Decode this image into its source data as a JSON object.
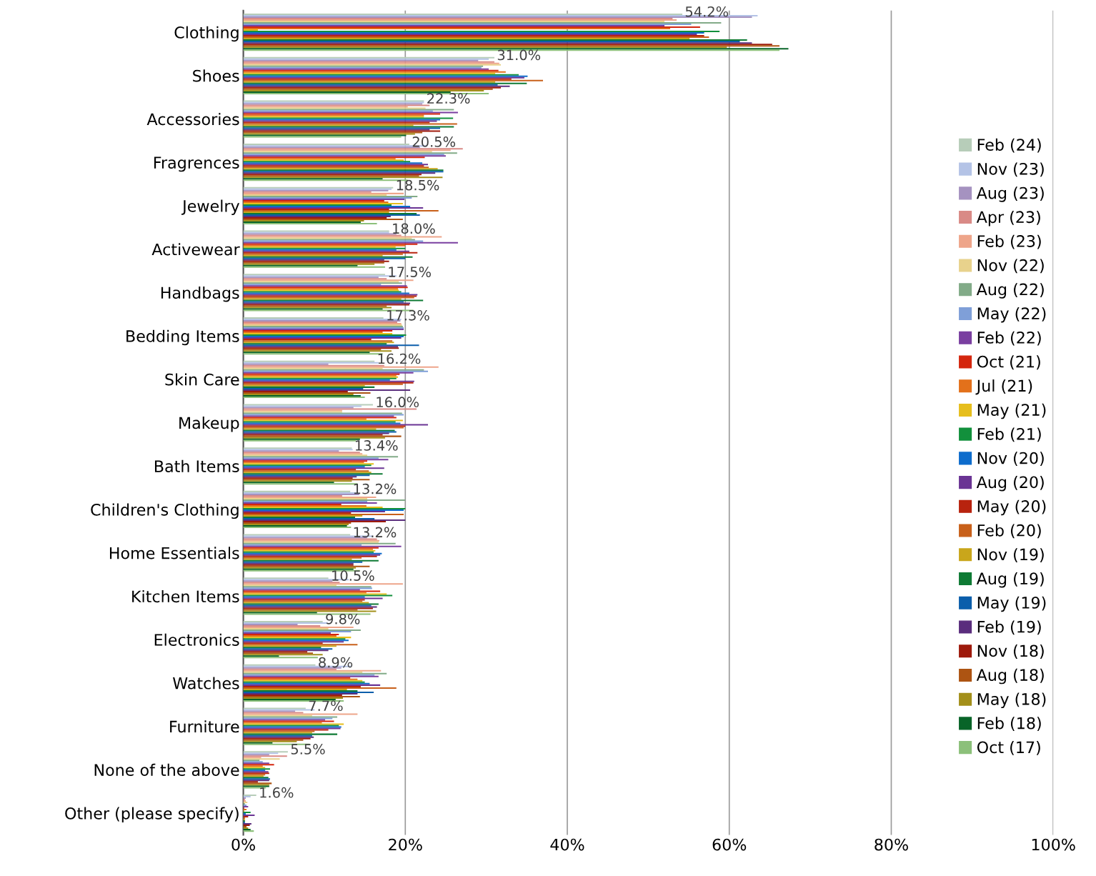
{
  "chart_data": {
    "type": "bar",
    "orientation": "horizontal",
    "categories": [
      "Clothing",
      "Shoes",
      "Accessories",
      "Fragrences",
      "Jewelry",
      "Activewear",
      "Handbags",
      "Bedding Items",
      "Skin Care",
      "Makeup",
      "Bath Items",
      "Children's Clothing",
      "Home Essentials",
      "Kitchen Items",
      "Electronics",
      "Watches",
      "Furniture",
      "None of the above",
      "Other (please specify)"
    ],
    "xlim": [
      0,
      100
    ],
    "xticks": [
      {
        "value": 0,
        "label": "0%"
      },
      {
        "value": 20,
        "label": "20%"
      },
      {
        "value": 40,
        "label": "40%"
      },
      {
        "value": 60,
        "label": "60%"
      },
      {
        "value": 80,
        "label": "80%"
      },
      {
        "value": 100,
        "label": "100%"
      }
    ],
    "grid": "x",
    "legend": "right",
    "series": [
      {
        "name": "Feb (24)",
        "color": "#b7cdb9",
        "values": [
          54.2,
          31.0,
          22.3,
          20.5,
          18.5,
          18.0,
          17.5,
          17.3,
          16.2,
          16.0,
          13.4,
          13.2,
          13.2,
          10.5,
          9.8,
          8.9,
          7.7,
          5.5,
          1.6
        ],
        "value_labels": [
          "54.2%",
          "31.0%",
          "22.3%",
          "20.5%",
          "18.5%",
          "18.0%",
          "17.5%",
          "17.3%",
          "16.2%",
          "16.0%",
          "13.4%",
          "13.2%",
          "13.2%",
          "10.5%",
          "9.8%",
          "8.9%",
          "7.7%",
          "5.5%",
          "1.6%"
        ]
      },
      {
        "name": "Nov (23)",
        "color": "#b4c3e6",
        "values": [
          63.5,
          30.3,
          22.3,
          22.7,
          18.3,
          18.0,
          18.9,
          19.5,
          16.7,
          14.6,
          13.5,
          14.0,
          16.0,
          13.0,
          10.4,
          13.3,
          8.8,
          4.3,
          0.9
        ]
      },
      {
        "name": "Aug (23)",
        "color": "#a592c0",
        "values": [
          62.8,
          29.0,
          22.1,
          21.8,
          17.9,
          18.9,
          16.7,
          19.4,
          10.5,
          13.6,
          11.8,
          14.3,
          15.3,
          11.0,
          6.7,
          12.1,
          6.4,
          3.2,
          0.3
        ]
      },
      {
        "name": "Apr (23)",
        "color": "#d98a86",
        "values": [
          53.0,
          31.0,
          23.0,
          27.1,
          15.8,
          19.5,
          17.7,
          19.0,
          17.4,
          21.4,
          14.4,
          12.2,
          16.5,
          11.9,
          9.5,
          11.5,
          7.4,
          5.4,
          0.2
        ]
      },
      {
        "name": "Feb (23)",
        "color": "#eea58a",
        "values": [
          53.5,
          31.6,
          20.3,
          25.6,
          19.8,
          24.5,
          21.0,
          19.5,
          24.1,
          12.2,
          14.7,
          16.4,
          16.8,
          19.7,
          13.6,
          17.0,
          14.1,
          2.2,
          0.3
        ]
      },
      {
        "name": "Nov (22)",
        "color": "#e8d28c",
        "values": [
          52.0,
          31.8,
          22.5,
          23.3,
          17.7,
          20.8,
          19.2,
          19.6,
          17.2,
          12.2,
          15.3,
          15.3,
          16.7,
          11.5,
          10.5,
          14.7,
          8.5,
          4.5,
          0.5
        ]
      },
      {
        "name": "Aug (22)",
        "color": "#82ab88",
        "values": [
          59.0,
          29.6,
          26.0,
          26.4,
          21.5,
          21.2,
          19.6,
          19.7,
          22.3,
          19.6,
          19.1,
          20.0,
          18.8,
          15.8,
          14.5,
          17.7,
          11.6,
          2.0,
          0.2
        ]
      },
      {
        "name": "May (22)",
        "color": "#7f9fd8",
        "values": [
          55.3,
          29.4,
          23.4,
          24.8,
          20.8,
          22.2,
          17.0,
          19.8,
          22.8,
          19.8,
          16.7,
          15.3,
          14.6,
          15.9,
          13.3,
          16.2,
          11.0,
          2.4,
          0.4
        ]
      },
      {
        "name": "Feb (22)",
        "color": "#7a3fa0",
        "values": [
          52.0,
          30.3,
          26.5,
          25.0,
          19.9,
          26.5,
          20.2,
          19.8,
          21.0,
          18.6,
          17.9,
          16.5,
          19.5,
          14.4,
          10.8,
          16.7,
          10.1,
          3.2,
          0.6
        ]
      },
      {
        "name": "Oct (21)",
        "color": "#d4260e",
        "values": [
          56.4,
          31.5,
          24.3,
          22.4,
          17.4,
          21.5,
          20.3,
          18.4,
          19.3,
          18.9,
          15.3,
          12.1,
          16.7,
          16.9,
          11.8,
          13.2,
          11.2,
          3.8,
          0.1
        ]
      },
      {
        "name": "Jul (21)",
        "color": "#e3711b",
        "values": [
          52.7,
          32.4,
          22.3,
          18.8,
          17.9,
          20.0,
          19.1,
          17.2,
          18.9,
          15.2,
          14.9,
          15.2,
          16.0,
          15.2,
          11.5,
          14.1,
          9.7,
          2.4,
          0.4
        ]
      },
      {
        "name": "May (21)",
        "color": "#e6be1d",
        "values": [
          1.8,
          31.1,
          22.3,
          19.8,
          19.7,
          18.8,
          19.2,
          18.4,
          19.1,
          19.7,
          16.1,
          17.2,
          16.3,
          17.7,
          13.3,
          14.7,
          12.4,
          2.7,
          0.1
        ]
      },
      {
        "name": "Feb (21)",
        "color": "#12903c",
        "values": [
          58.8,
          34.0,
          25.9,
          20.6,
          18.3,
          20.0,
          19.5,
          20.1,
          18.9,
          18.8,
          15.8,
          20.0,
          16.1,
          18.4,
          12.6,
          15.0,
          11.8,
          3.3,
          0.9
        ]
      },
      {
        "name": "Nov (20)",
        "color": "#0d6ccc",
        "values": [
          56.9,
          35.1,
          24.3,
          22.1,
          20.6,
          18.9,
          20.5,
          19.8,
          18.1,
          19.4,
          15.0,
          19.8,
          17.1,
          15.0,
          13.0,
          15.6,
          12.1,
          2.7,
          0.3
        ]
      },
      {
        "name": "Aug (20)",
        "color": "#6a3494",
        "values": [
          56.0,
          34.7,
          23.9,
          22.8,
          22.2,
          20.5,
          21.5,
          19.5,
          21.1,
          22.8,
          17.4,
          17.5,
          16.9,
          17.2,
          12.4,
          16.9,
          12.0,
          3.1,
          1.4
        ]
      },
      {
        "name": "May (20)",
        "color": "#b8230e",
        "values": [
          56.9,
          33.1,
          23.0,
          22.3,
          18.0,
          21.5,
          21.4,
          15.8,
          21.0,
          20.0,
          13.9,
          13.3,
          16.5,
          15.0,
          9.8,
          14.5,
          10.5,
          3.2,
          0.6
        ]
      },
      {
        "name": "Feb (20)",
        "color": "#c8601a",
        "values": [
          57.5,
          37.0,
          26.4,
          22.9,
          24.1,
          19.7,
          21.1,
          18.4,
          19.7,
          19.8,
          15.5,
          19.8,
          14.6,
          14.7,
          14.1,
          18.9,
          8.8,
          2.7,
          0.2
        ]
      },
      {
        "name": "Nov (19)",
        "color": "#c9a61b",
        "values": [
          55.1,
          31.1,
          21.0,
          24.0,
          18.0,
          17.2,
          19.5,
          18.6,
          15.0,
          16.4,
          15.8,
          14.7,
          13.4,
          15.5,
          11.5,
          12.8,
          8.5,
          2.5,
          0.2
        ]
      },
      {
        "name": "Aug (19)",
        "color": "#0e7a34",
        "values": [
          62.2,
          35.0,
          26.0,
          24.7,
          21.4,
          20.9,
          22.2,
          17.7,
          16.2,
          18.7,
          17.2,
          13.8,
          16.7,
          16.7,
          9.6,
          14.1,
          11.6,
          3.1,
          0.2
        ]
      },
      {
        "name": "May (19)",
        "color": "#0b5eab",
        "values": [
          61.3,
          31.4,
          24.3,
          24.7,
          21.8,
          20.0,
          19.8,
          21.7,
          14.8,
          18.9,
          15.6,
          16.2,
          14.7,
          15.8,
          11.0,
          16.1,
          8.5,
          3.3,
          0.2
        ]
      },
      {
        "name": "Feb (19)",
        "color": "#5a2d7d",
        "values": [
          62.8,
          32.9,
          23.0,
          23.7,
          18.2,
          17.4,
          20.6,
          19.1,
          20.6,
          18.0,
          14.0,
          20.0,
          13.6,
          16.5,
          10.5,
          14.1,
          8.7,
          3.2,
          1.0
        ]
      },
      {
        "name": "Nov (18)",
        "color": "#9e1a0c",
        "values": [
          65.3,
          31.8,
          24.3,
          22.0,
          17.7,
          18.0,
          20.5,
          19.2,
          12.9,
          17.2,
          13.5,
          17.6,
          13.6,
          16.0,
          7.9,
          12.2,
          8.3,
          1.8,
          0.8
        ]
      },
      {
        "name": "Aug (18)",
        "color": "#ad5412",
        "values": [
          66.2,
          30.8,
          22.1,
          21.7,
          19.7,
          17.4,
          17.7,
          17.0,
          15.7,
          19.5,
          15.6,
          13.3,
          15.6,
          14.1,
          8.6,
          14.4,
          7.4,
          3.5,
          0.4
        ]
      },
      {
        "name": "May (18)",
        "color": "#a38f1a",
        "values": [
          59.7,
          29.7,
          21.2,
          24.6,
          14.9,
          16.2,
          18.3,
          18.3,
          13.6,
          17.5,
          13.4,
          13.0,
          13.9,
          16.4,
          9.8,
          12.3,
          6.6,
          3.2,
          0.6
        ]
      },
      {
        "name": "Feb (18)",
        "color": "#086428",
        "values": [
          67.3,
          25.6,
          20.1,
          17.2,
          14.5,
          14.1,
          17.2,
          15.6,
          14.5,
          14.4,
          11.2,
          12.8,
          13.6,
          9.1,
          4.4,
          11.4,
          3.6,
          3.2,
          0.9
        ]
      },
      {
        "name": "Oct (17)",
        "color": "#8cc07a",
        "values": [
          66.2,
          30.3,
          19.5,
          20.3,
          16.5,
          17.5,
          21.0,
          17.2,
          15.0,
          13.9,
          14.1,
          13.3,
          14.4,
          15.7,
          9.2,
          12.4,
          8.2,
          2.8,
          1.3
        ]
      }
    ]
  }
}
